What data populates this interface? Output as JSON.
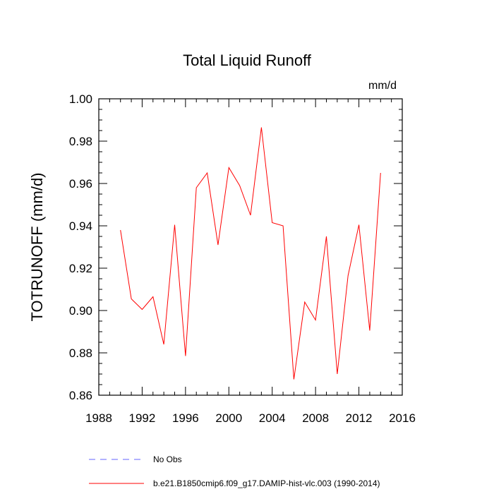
{
  "chart_data": {
    "type": "line",
    "title": "Total Liquid Runoff",
    "units_label": "mm/d",
    "ylabel": "TOTRUNOFF  (mm/d)",
    "xlabel": "",
    "xlim": [
      1988,
      2016
    ],
    "ylim": [
      0.86,
      1.0
    ],
    "x_ticks": [
      1988,
      1992,
      1996,
      2000,
      2004,
      2008,
      2012,
      2016
    ],
    "y_ticks": [
      0.86,
      0.88,
      0.9,
      0.92,
      0.94,
      0.96,
      0.98,
      1.0
    ],
    "x_tick_labels": [
      "1988",
      "1992",
      "1996",
      "2000",
      "2004",
      "2008",
      "2012",
      "2016"
    ],
    "y_tick_labels": [
      "0.86",
      "0.88",
      "0.90",
      "0.92",
      "0.94",
      "0.96",
      "0.98",
      "1.00"
    ],
    "grid": false,
    "series": [
      {
        "name": "b.e21.B1850cmip6.f09_g17.DAMIP-hist-vlc.003 (1990-2014)",
        "color": "#ff0000",
        "style": "solid",
        "x": [
          1990,
          1991,
          1992,
          1993,
          1994,
          1995,
          1996,
          1997,
          1998,
          1999,
          2000,
          2001,
          2002,
          2003,
          2004,
          2005,
          2006,
          2007,
          2008,
          2009,
          2010,
          2011,
          2012,
          2013,
          2014
        ],
        "y": [
          0.938,
          0.9055,
          0.9005,
          0.9065,
          0.884,
          0.9405,
          0.8785,
          0.958,
          0.965,
          0.931,
          0.9675,
          0.959,
          0.945,
          0.9865,
          0.9415,
          0.94,
          0.8675,
          0.904,
          0.8955,
          0.935,
          0.87,
          0.9165,
          0.9405,
          0.8905,
          0.965
        ]
      }
    ],
    "legend": {
      "placement": "bottom",
      "entries": [
        {
          "label": "No Obs",
          "color": "#6666ff",
          "style": "dashed"
        },
        {
          "label": "b.e21.B1850cmip6.f09_g17.DAMIP-hist-vlc.003 (1990-2014)",
          "color": "#ff0000",
          "style": "solid"
        }
      ]
    }
  }
}
